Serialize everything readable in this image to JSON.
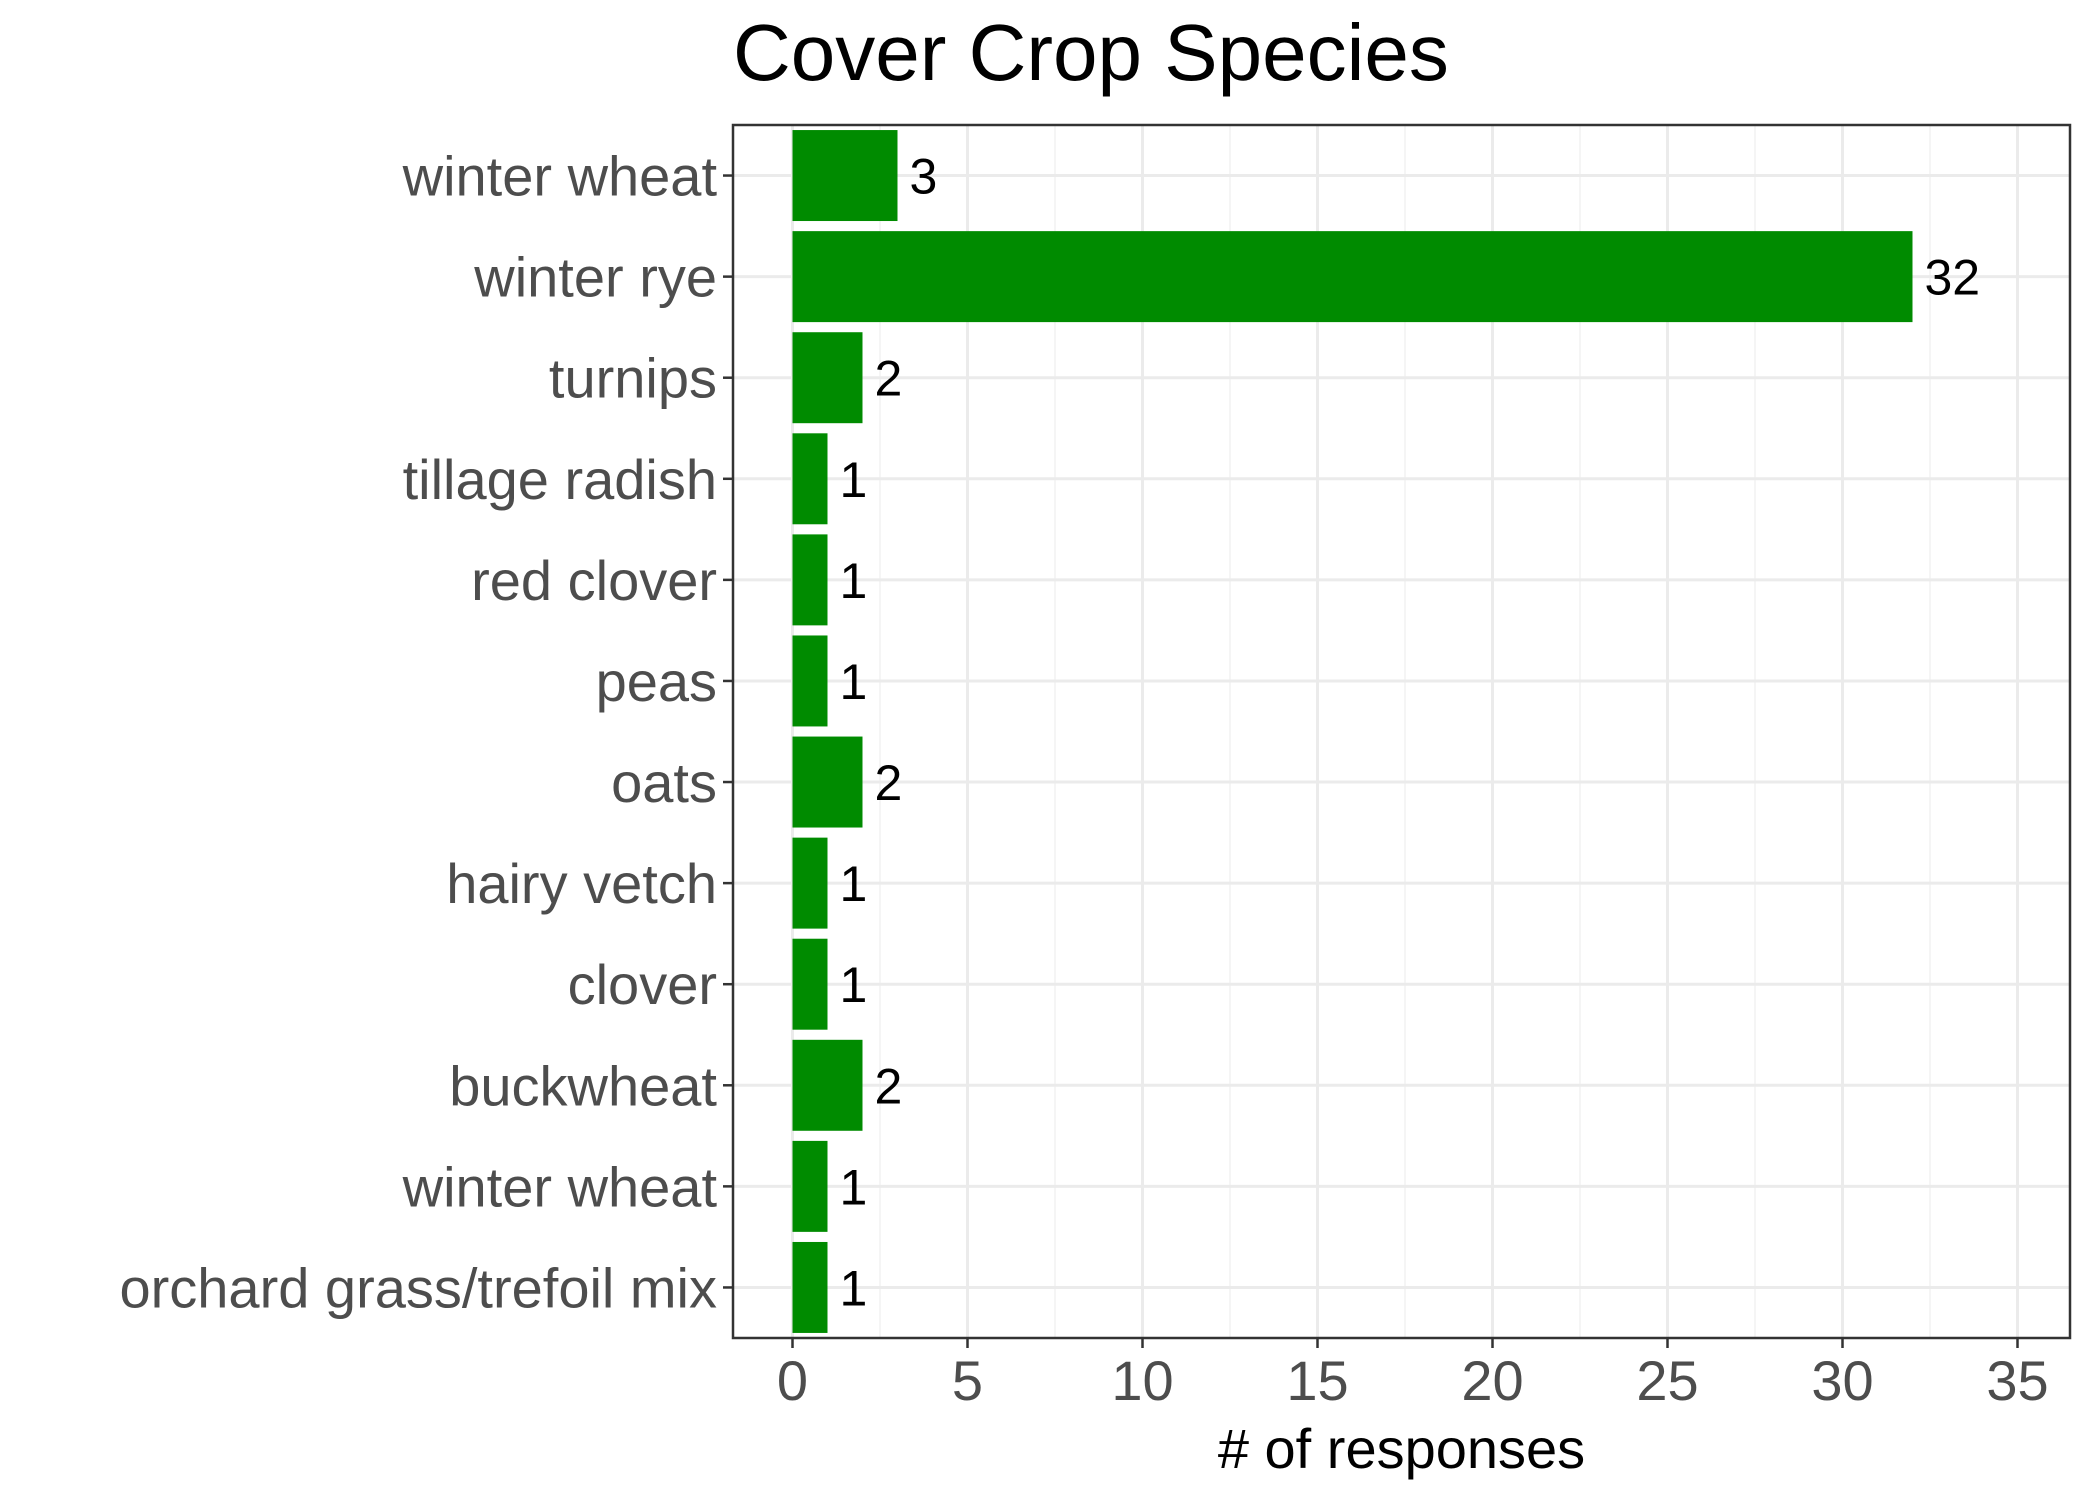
{
  "colors": {
    "bar": "#008b00",
    "panel_border": "#333333",
    "grid_major": "#ebebeb",
    "grid_minor": "#f2f2f2",
    "tick_text": "#4d4d4d",
    "tick_mark": "#333333",
    "background": "#ffffff"
  },
  "chart_data": {
    "type": "bar",
    "orientation": "horizontal",
    "title": "Cover Crop Species",
    "xlabel": "# of responses",
    "ylabel": "",
    "xlim": [
      -1.7,
      36.5
    ],
    "x_ticks": [
      0,
      5,
      10,
      15,
      20,
      25,
      30,
      35
    ],
    "x_tick_labels": [
      "0",
      "5",
      "10",
      "15",
      "20",
      "25",
      "30",
      "35"
    ],
    "grid": true,
    "legend": "none",
    "categories": [
      "winter wheat",
      "winter rye",
      "turnips",
      "tillage radish",
      "red clover",
      "peas",
      "oats",
      "hairy vetch",
      "clover",
      "buckwheat",
      "winter wheat",
      "orchard grass/trefoil mix"
    ],
    "values": [
      3,
      32,
      2,
      1,
      1,
      1,
      2,
      1,
      1,
      2,
      1,
      1
    ],
    "data_labels": [
      "3",
      "32",
      "2",
      "1",
      "1",
      "1",
      "2",
      "1",
      "1",
      "2",
      "1",
      "1"
    ]
  }
}
